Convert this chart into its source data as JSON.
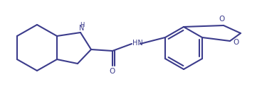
{
  "bg_color": "#ffffff",
  "line_color": "#3c3c8c",
  "bond_lw": 1.5,
  "figsize": [
    3.61,
    1.5
  ],
  "dpi": 100,
  "xlim": [
    0,
    361
  ],
  "ylim": [
    0,
    150
  ]
}
